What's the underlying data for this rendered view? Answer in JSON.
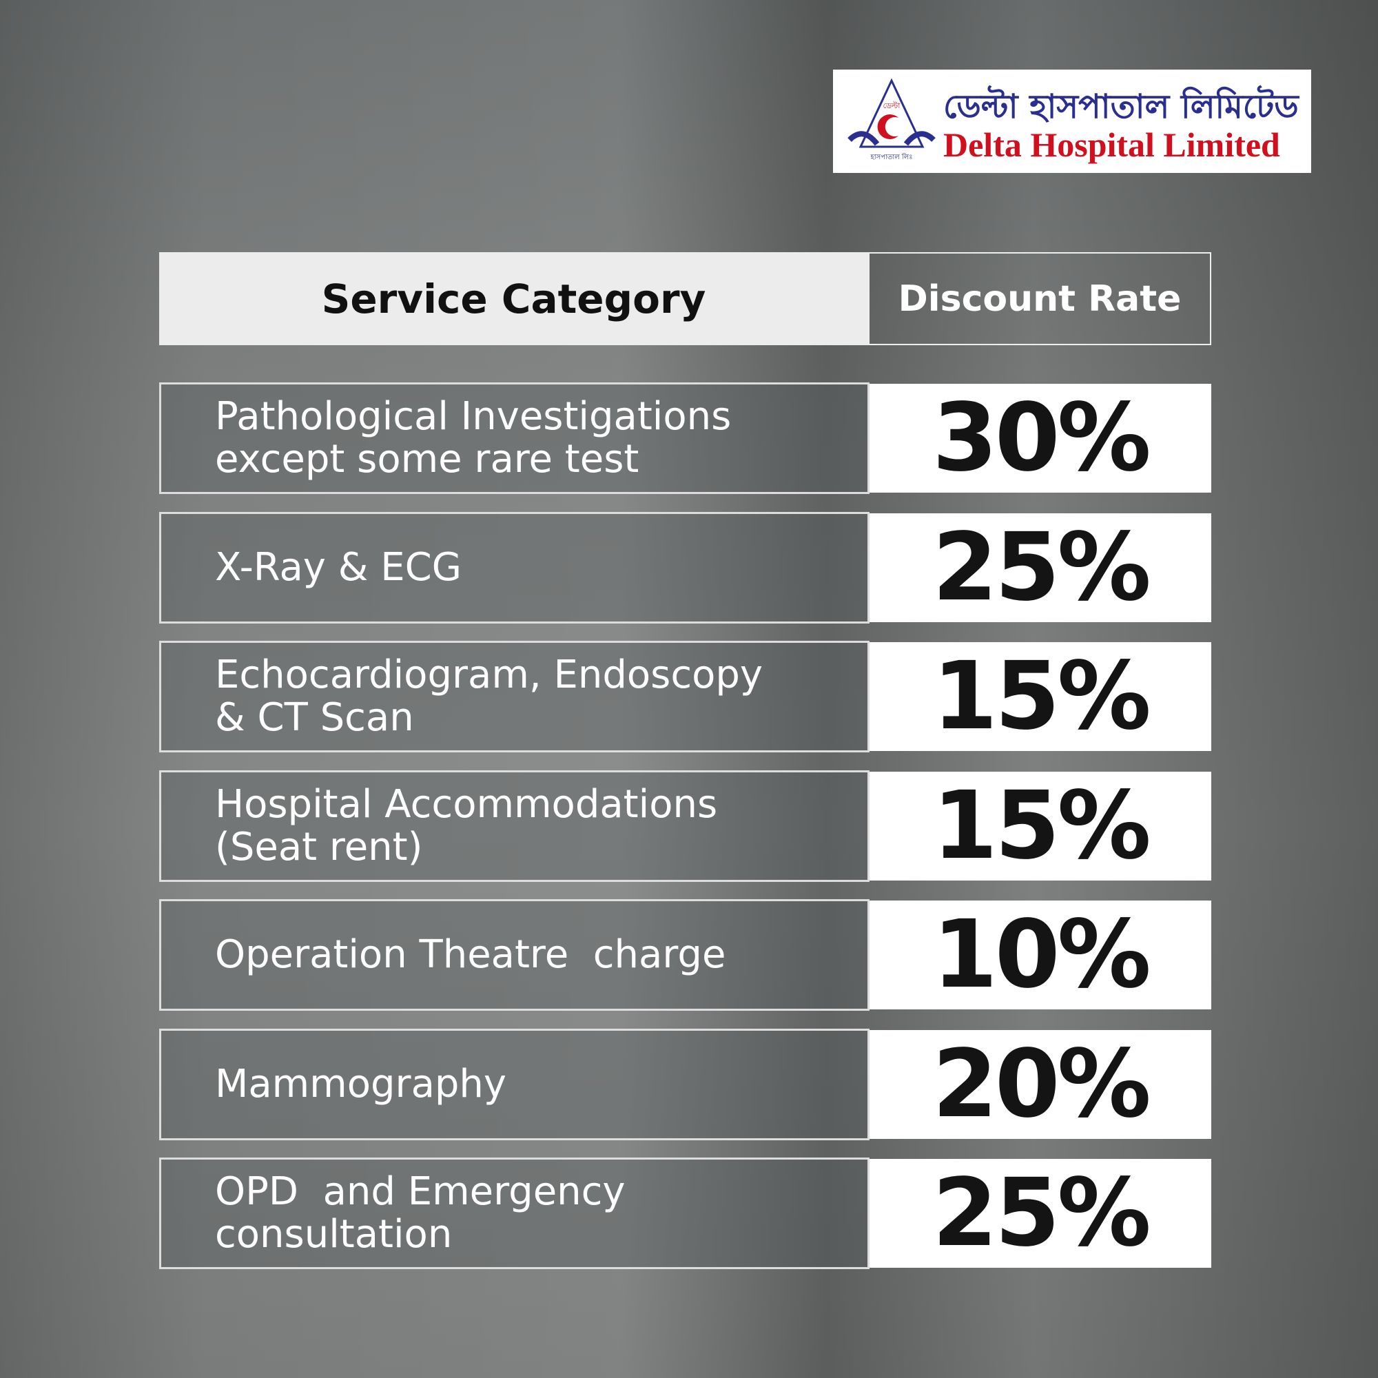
{
  "logo": {
    "emblem_top": "ডেল্টা",
    "emblem_bottom": "হাসপাতাল লিঃ",
    "name_bn": "ডেল্টা হাসপাতাল লিমিটেড",
    "name_en": "Delta Hospital Limited"
  },
  "table": {
    "header": [
      "Service Category",
      "Discount Rate"
    ],
    "rows": [
      {
        "category": [
          "Pathological Investigations",
          "except some rare test"
        ],
        "rate": "30%"
      },
      {
        "category": [
          "X-Ray & ECG"
        ],
        "rate": "25%"
      },
      {
        "category": [
          "Echocardiogram, Endoscopy",
          "& CT Scan"
        ],
        "rate": "15%"
      },
      {
        "category": [
          "Hospital Accommodations",
          "(Seat rent)"
        ],
        "rate": "15%"
      },
      {
        "category": [
          "Operation Theatre  charge"
        ],
        "rate": "10%"
      },
      {
        "category": [
          "Mammography"
        ],
        "rate": "20%"
      },
      {
        "category": [
          "OPD  and Emergency",
          "consultation"
        ],
        "rate": "25%"
      }
    ]
  }
}
